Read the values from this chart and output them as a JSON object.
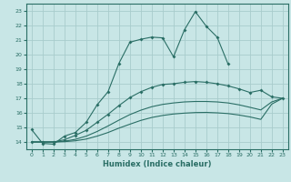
{
  "xlabel": "Humidex (Indice chaleur)",
  "xlim": [
    -0.5,
    23.5
  ],
  "ylim": [
    13.5,
    23.5
  ],
  "xticks": [
    0,
    1,
    2,
    3,
    4,
    5,
    6,
    7,
    8,
    9,
    10,
    11,
    12,
    13,
    14,
    15,
    16,
    17,
    18,
    19,
    20,
    21,
    22,
    23
  ],
  "yticks": [
    14,
    15,
    16,
    17,
    18,
    19,
    20,
    21,
    22,
    23
  ],
  "background_color": "#c8e6e6",
  "grid_color": "#a8cccc",
  "line_color": "#2a6e65",
  "line1_x": [
    0,
    1,
    2,
    3,
    4,
    5,
    6,
    7,
    8,
    9,
    10,
    11,
    12,
    13,
    14,
    15,
    16,
    17,
    18
  ],
  "line1_y": [
    14.85,
    13.9,
    13.85,
    14.4,
    14.65,
    15.35,
    16.55,
    17.45,
    19.4,
    20.85,
    21.05,
    21.2,
    21.15,
    19.85,
    21.7,
    22.95,
    21.95,
    21.2,
    19.35
  ],
  "line2_x": [
    0,
    1,
    2,
    3,
    4,
    5,
    6,
    7,
    8,
    9,
    10,
    11,
    12,
    13,
    14,
    15,
    16,
    17,
    18,
    19,
    20,
    21,
    22,
    23
  ],
  "line2_y": [
    14.0,
    14.0,
    14.0,
    14.15,
    14.45,
    14.8,
    15.35,
    15.9,
    16.5,
    17.05,
    17.45,
    17.75,
    17.95,
    18.0,
    18.1,
    18.15,
    18.1,
    18.0,
    17.85,
    17.65,
    17.4,
    17.55,
    17.1,
    17.0
  ],
  "line3_x": [
    0,
    1,
    2,
    3,
    4,
    5,
    6,
    7,
    8,
    9,
    10,
    11,
    12,
    13,
    14,
    15,
    16,
    17,
    18,
    19,
    20,
    21,
    22,
    23
  ],
  "line3_y": [
    14.0,
    14.0,
    14.0,
    14.05,
    14.18,
    14.4,
    14.72,
    15.1,
    15.5,
    15.88,
    16.18,
    16.42,
    16.58,
    16.68,
    16.75,
    16.78,
    16.78,
    16.75,
    16.68,
    16.55,
    16.38,
    16.2,
    16.75,
    17.0
  ],
  "line4_x": [
    0,
    1,
    2,
    3,
    4,
    5,
    6,
    7,
    8,
    9,
    10,
    11,
    12,
    13,
    14,
    15,
    16,
    17,
    18,
    19,
    20,
    21,
    22,
    23
  ],
  "line4_y": [
    14.0,
    14.0,
    14.0,
    14.02,
    14.08,
    14.2,
    14.4,
    14.65,
    14.95,
    15.22,
    15.48,
    15.68,
    15.82,
    15.92,
    15.98,
    16.02,
    16.03,
    16.0,
    15.95,
    15.85,
    15.72,
    15.55,
    16.6,
    17.0
  ]
}
